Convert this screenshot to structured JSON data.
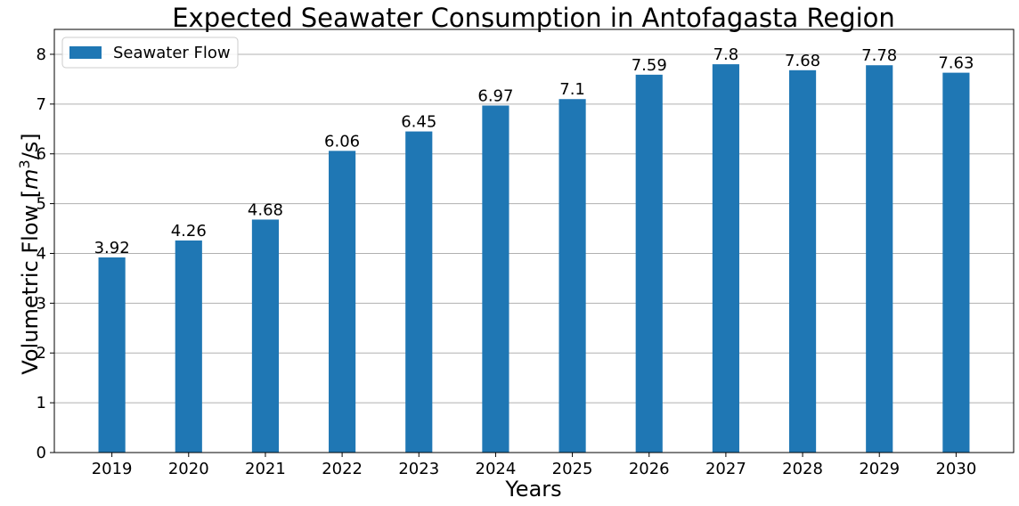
{
  "chart_data": {
    "type": "bar",
    "title": "Expected Seawater Consumption in Antofagasta Region",
    "xlabel": "Years",
    "ylabel_main": "Volumetric Flow [",
    "ylabel_unit_base": "m",
    "ylabel_unit_exp": "3",
    "ylabel_tail": "/s]",
    "categories": [
      "2019",
      "2020",
      "2021",
      "2022",
      "2023",
      "2024",
      "2025",
      "2026",
      "2027",
      "2028",
      "2029",
      "2030"
    ],
    "series": [
      {
        "name": "Seawater Flow",
        "values": [
          3.92,
          4.26,
          4.68,
          6.06,
          6.45,
          6.97,
          7.1,
          7.59,
          7.8,
          7.68,
          7.78,
          7.63
        ],
        "data_labels": [
          "3.92",
          "4.26",
          "4.68",
          "6.06",
          "6.45",
          "6.97",
          "7.1",
          "7.59",
          "7.8",
          "7.68",
          "7.78",
          "7.63"
        ],
        "color": "#1f77b4"
      }
    ],
    "ylim": [
      0,
      8.5
    ],
    "yticks": [
      0,
      1,
      2,
      3,
      4,
      5,
      6,
      7,
      8
    ],
    "grid": "y",
    "legend_position": "top-left"
  }
}
